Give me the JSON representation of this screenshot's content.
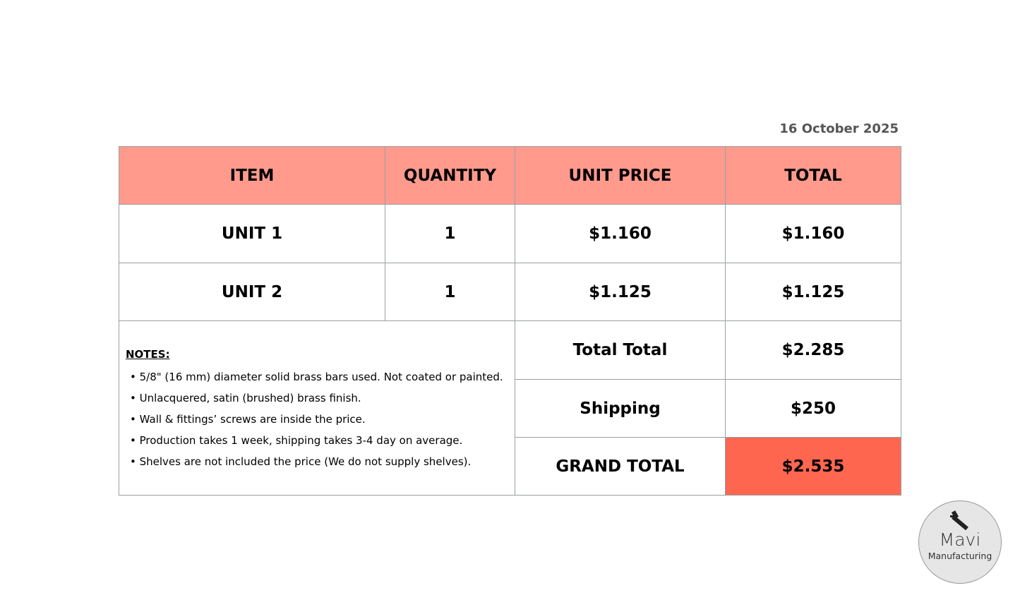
{
  "date": "16 October 2025",
  "table": {
    "headers": [
      "ITEM",
      "QUANTITY",
      "UNIT PRICE",
      "TOTAL"
    ],
    "rows": [
      {
        "item": "UNIT 1",
        "quantity": "1",
        "unit_price": "$1.160",
        "total": "$1.160"
      },
      {
        "item": "UNIT 2",
        "quantity": "1",
        "unit_price": "$1.125",
        "total": "$1.125"
      }
    ]
  },
  "summary": {
    "total_label": "Total Total",
    "total_value": "$2.285",
    "shipping_label": "Shipping",
    "shipping_value": "$250",
    "grand_label": "GRAND TOTAL",
    "grand_value": "$2.535"
  },
  "notes": {
    "title": "NOTES:",
    "items": [
      "5/8\" (16 mm) diameter solid brass bars used. Not coated or painted.",
      "Unlacquered, satin (brushed) brass finish.",
      "Wall & fittings’ screws are inside the price.",
      "Production takes 1 week, shipping takes 3-4 day on average.",
      "Shelves are not included the price (We do not supply shelves)."
    ]
  },
  "logo": {
    "name": "Mavi",
    "subtitle": "Manufacturing",
    "icon": "caliper-icon"
  },
  "colors": {
    "header": "#ff9a8d",
    "grand_total": "#ff6650"
  }
}
